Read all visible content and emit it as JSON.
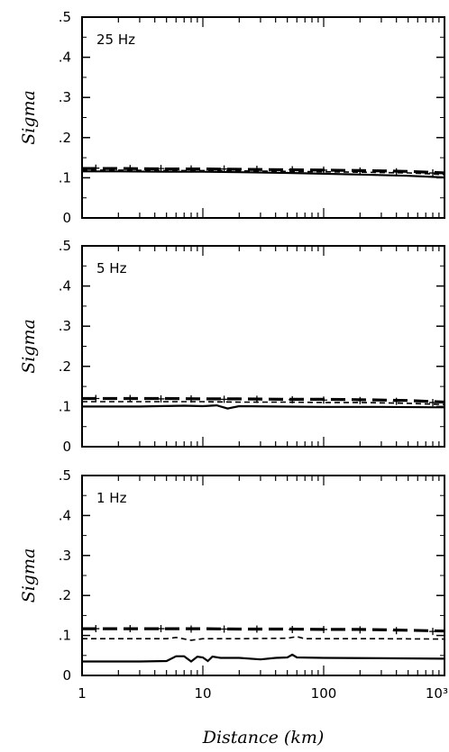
{
  "chart_data": [
    {
      "type": "line",
      "panel_label": "25 Hz",
      "ylabel": "Sigma",
      "xlabel": "",
      "xscale": "log",
      "xlim": [
        1,
        1000
      ],
      "ylim": [
        0,
        0.5
      ],
      "yticks": [
        0,
        0.1,
        0.2,
        0.3,
        0.4,
        0.5
      ],
      "ytick_labels": [
        "0",
        ".1",
        ".2",
        ".3",
        ".4",
        ".5"
      ],
      "xticks": [
        1,
        10,
        100,
        1000
      ],
      "xtick_labels": [
        "",
        "",
        "",
        ""
      ],
      "series": [
        {
          "style": "solid",
          "x": [
            1,
            2,
            5,
            10,
            20,
            50,
            100,
            200,
            500,
            1000
          ],
          "y": [
            0.116,
            0.116,
            0.115,
            0.115,
            0.114,
            0.112,
            0.11,
            0.108,
            0.105,
            0.101
          ]
        },
        {
          "style": "dashed",
          "x": [
            1,
            2,
            5,
            10,
            20,
            50,
            100,
            200,
            500,
            1000
          ],
          "y": [
            0.119,
            0.119,
            0.118,
            0.118,
            0.117,
            0.116,
            0.115,
            0.114,
            0.112,
            0.108
          ]
        },
        {
          "style": "long-dash",
          "x": [
            1,
            2,
            5,
            10,
            20,
            50,
            100,
            200,
            500,
            1000
          ],
          "y": [
            0.123,
            0.123,
            0.122,
            0.122,
            0.121,
            0.12,
            0.119,
            0.118,
            0.116,
            0.112
          ]
        },
        {
          "style": "plus-markers",
          "x": [
            1.3,
            2.5,
            4.5,
            8,
            15,
            28,
            55,
            100,
            200,
            400,
            800
          ],
          "y": [
            0.124,
            0.123,
            0.123,
            0.122,
            0.122,
            0.121,
            0.12,
            0.119,
            0.117,
            0.115,
            0.112
          ]
        }
      ]
    },
    {
      "type": "line",
      "panel_label": "5 Hz",
      "ylabel": "Sigma",
      "xlabel": "",
      "xscale": "log",
      "xlim": [
        1,
        1000
      ],
      "ylim": [
        0,
        0.5
      ],
      "yticks": [
        0,
        0.1,
        0.2,
        0.3,
        0.4,
        0.5
      ],
      "ytick_labels": [
        "0",
        ".1",
        ".2",
        ".3",
        ".4",
        ".5"
      ],
      "xticks": [
        1,
        10,
        100,
        1000
      ],
      "xtick_labels": [
        "",
        "",
        "",
        ""
      ],
      "series": [
        {
          "style": "solid",
          "x": [
            1,
            3,
            7,
            10,
            13,
            16,
            20,
            40,
            100,
            300,
            1000
          ],
          "y": [
            0.1,
            0.1,
            0.102,
            0.101,
            0.103,
            0.095,
            0.101,
            0.1,
            0.099,
            0.099,
            0.098
          ]
        },
        {
          "style": "dashed",
          "x": [
            1,
            2,
            5,
            10,
            20,
            50,
            100,
            200,
            500,
            1000
          ],
          "y": [
            0.112,
            0.112,
            0.112,
            0.112,
            0.111,
            0.111,
            0.11,
            0.11,
            0.108,
            0.105
          ]
        },
        {
          "style": "long-dash",
          "x": [
            1,
            2,
            5,
            10,
            20,
            50,
            100,
            200,
            500,
            1000
          ],
          "y": [
            0.12,
            0.12,
            0.12,
            0.119,
            0.119,
            0.118,
            0.118,
            0.117,
            0.115,
            0.111
          ]
        },
        {
          "style": "plus-markers",
          "x": [
            1.3,
            2.5,
            4.5,
            8,
            15,
            28,
            55,
            100,
            200,
            400,
            800
          ],
          "y": [
            0.12,
            0.12,
            0.119,
            0.119,
            0.118,
            0.118,
            0.117,
            0.116,
            0.115,
            0.113,
            0.11
          ]
        }
      ]
    },
    {
      "type": "line",
      "panel_label": "1 Hz",
      "ylabel": "Sigma",
      "xlabel": "Distance (km)",
      "xscale": "log",
      "xlim": [
        1,
        1000
      ],
      "ylim": [
        0,
        0.5
      ],
      "yticks": [
        0,
        0.1,
        0.2,
        0.3,
        0.4,
        0.5
      ],
      "ytick_labels": [
        "0",
        ".1",
        ".2",
        ".3",
        ".4",
        ".5"
      ],
      "xticks": [
        1,
        10,
        100,
        1000
      ],
      "xtick_labels": [
        "1",
        "10",
        "100",
        "10³"
      ],
      "series": [
        {
          "style": "solid",
          "x": [
            1,
            3,
            5,
            6,
            7,
            8,
            9,
            10,
            11,
            12,
            14,
            20,
            30,
            40,
            50,
            55,
            60,
            100,
            300,
            1000
          ],
          "y": [
            0.035,
            0.035,
            0.036,
            0.048,
            0.048,
            0.035,
            0.047,
            0.045,
            0.036,
            0.047,
            0.044,
            0.044,
            0.04,
            0.044,
            0.045,
            0.052,
            0.045,
            0.044,
            0.043,
            0.042
          ]
        },
        {
          "style": "dashed",
          "x": [
            1,
            3,
            5,
            6,
            8,
            10,
            20,
            50,
            60,
            70,
            100,
            300,
            1000
          ],
          "y": [
            0.092,
            0.092,
            0.092,
            0.095,
            0.088,
            0.092,
            0.092,
            0.093,
            0.097,
            0.092,
            0.092,
            0.092,
            0.091
          ]
        },
        {
          "style": "long-dash",
          "x": [
            1,
            2,
            5,
            10,
            20,
            50,
            100,
            200,
            500,
            1000
          ],
          "y": [
            0.117,
            0.117,
            0.117,
            0.117,
            0.116,
            0.116,
            0.115,
            0.115,
            0.113,
            0.111
          ]
        },
        {
          "style": "plus-markers",
          "x": [
            1.3,
            2.5,
            4.5,
            8,
            15,
            28,
            55,
            100,
            200,
            400,
            800
          ],
          "y": [
            0.117,
            0.117,
            0.117,
            0.116,
            0.116,
            0.116,
            0.115,
            0.115,
            0.114,
            0.112,
            0.11
          ]
        }
      ]
    }
  ]
}
